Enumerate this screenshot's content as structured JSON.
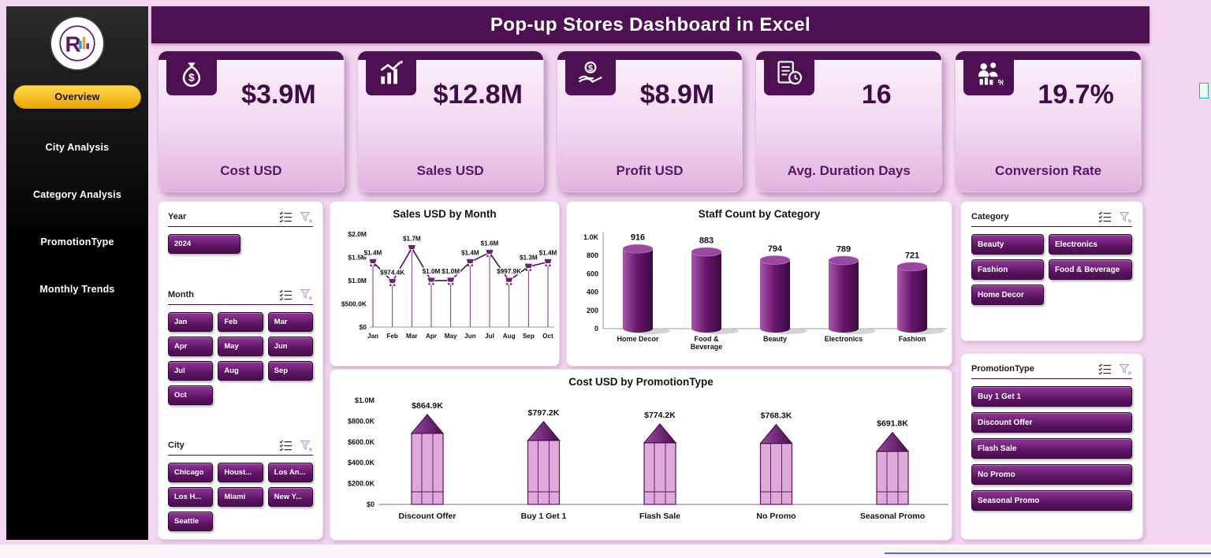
{
  "header": {
    "title": "Pop-up Stores Dashboard in Excel"
  },
  "colors": {
    "brand_purple": "#4d1153",
    "button_purple": "#5a1260",
    "accent_yellow": "#f2b705",
    "card_pink": "#f3d9f2",
    "background": "#f3d7f1"
  },
  "sidebar": {
    "logo_icon": "r-logo-icon",
    "items": [
      {
        "label": "Overview",
        "active": true
      },
      {
        "label": "City Analysis",
        "active": false
      },
      {
        "label": "Category Analysis",
        "active": false
      },
      {
        "label": "PromotionType",
        "active": false
      },
      {
        "label": "Monthly Trends",
        "active": false
      }
    ]
  },
  "kpis": [
    {
      "icon": "money-bag-icon",
      "value": "$3.9M",
      "label": "Cost USD"
    },
    {
      "icon": "sales-growth-icon",
      "value": "$12.8M",
      "label": "Sales USD"
    },
    {
      "icon": "profit-hands-icon",
      "value": "$8.9M",
      "label": "Profit USD"
    },
    {
      "icon": "duration-clock-icon",
      "value": "16",
      "label": "Avg. Duration Days"
    },
    {
      "icon": "conversion-people-icon",
      "value": "19.7%",
      "label": "Conversion Rate"
    }
  ],
  "slicer_header_icons": [
    "multi-select-icon",
    "clear-filter-icon"
  ],
  "slicers": {
    "year": {
      "label": "Year",
      "options": [
        "2024"
      ]
    },
    "month": {
      "label": "Month",
      "options": [
        "Jan",
        "Feb",
        "Mar",
        "Apr",
        "May",
        "Jun",
        "Jul",
        "Aug",
        "Sep",
        "Oct"
      ]
    },
    "city": {
      "label": "City",
      "options": [
        "Chicago",
        "Houst...",
        "Los An...",
        "Los H...",
        "Miami",
        "New Y...",
        "Seattle"
      ]
    },
    "category": {
      "label": "Category",
      "options": [
        "Beauty",
        "Electronics",
        "Fashion",
        "Food & Beverage",
        "Home Decor"
      ]
    },
    "promotion": {
      "label": "PromotionType",
      "options": [
        "Buy 1 Get 1",
        "Discount Offer",
        "Flash Sale",
        "No Promo",
        "Seasonal Promo"
      ]
    }
  },
  "chart_data": [
    {
      "type": "line",
      "title": "Sales USD by Month",
      "categories": [
        "Jan",
        "Feb",
        "Mar",
        "Apr",
        "May",
        "Jun",
        "Jul",
        "Aug",
        "Sep",
        "Oct"
      ],
      "values": [
        1400000,
        974400,
        1700000,
        1000000,
        1000000,
        1400000,
        1600000,
        997900,
        1300000,
        1400000
      ],
      "labels": [
        "$1.4M",
        "$974.4K",
        "$1.7M",
        "$1.0M",
        "$1.0M",
        "$1.4M",
        "$1.6M",
        "$997.9K",
        "$1.3M",
        "$1.4M"
      ],
      "xlabel": "",
      "ylabel": "",
      "ylim": [
        0,
        2000000
      ],
      "yticks": [
        "$0",
        "$500.0K",
        "$1.0M",
        "$1.5M",
        "$2.0M"
      ],
      "grid": false,
      "legend": "none",
      "marker": "cart-icon"
    },
    {
      "type": "bar",
      "title": "Staff Count by Category",
      "categories": [
        "Home Decor",
        "Food & Beverage",
        "Beauty",
        "Electronics",
        "Fashion"
      ],
      "values": [
        916,
        883,
        794,
        789,
        721
      ],
      "labels": [
        "916",
        "883",
        "794",
        "789",
        "721"
      ],
      "xlabel": "",
      "ylabel": "",
      "ylim": [
        0,
        1000
      ],
      "yticks": [
        "0",
        "200",
        "400",
        "600",
        "800",
        "1.0K"
      ],
      "grid": false,
      "legend": "none",
      "bar_style": "3d-cylinder"
    },
    {
      "type": "bar",
      "title": "Cost USD by PromotionType",
      "categories": [
        "Discount Offer",
        "Buy 1 Get 1",
        "Flash Sale",
        "No Promo",
        "Seasonal Promo"
      ],
      "values": [
        864900,
        797200,
        774200,
        768300,
        691800
      ],
      "labels": [
        "$864.9K",
        "$797.2K",
        "$774.2K",
        "$768.3K",
        "$691.8K"
      ],
      "xlabel": "",
      "ylabel": "",
      "ylim": [
        0,
        1000000
      ],
      "yticks": [
        "$0",
        "$200.0K",
        "$400.0K",
        "$600.0K",
        "$800.0K",
        "$1.0M"
      ],
      "grid": false,
      "legend": "none",
      "bar_style": "pencil"
    }
  ]
}
